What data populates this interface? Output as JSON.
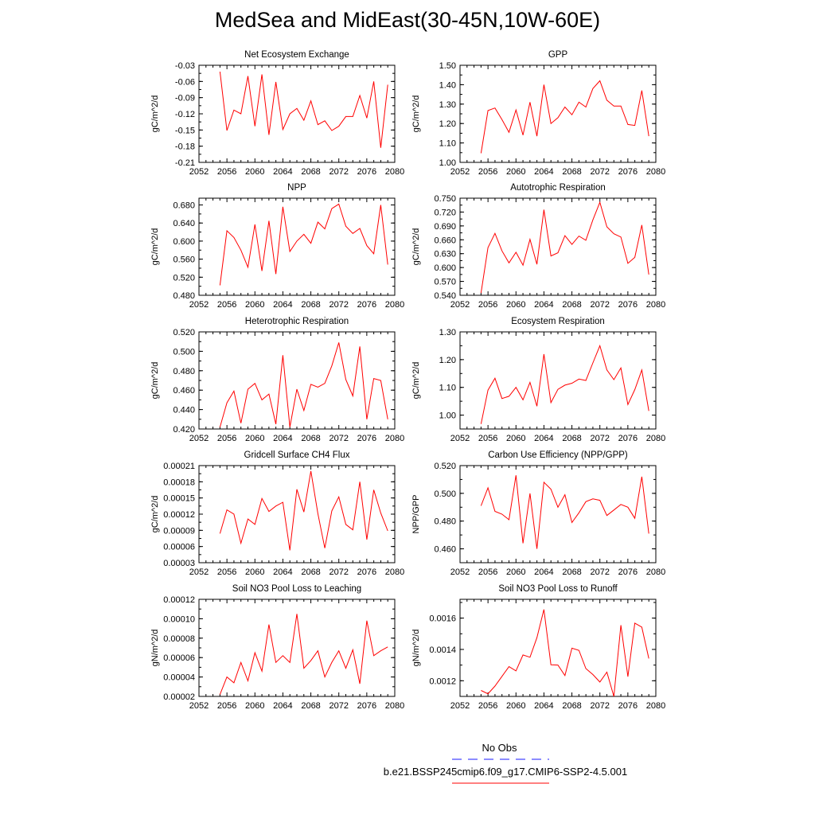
{
  "title": "MedSea and MidEast(30-45N,10W-60E)",
  "line_color": "#ff0000",
  "obs_color": "#1a1aff",
  "legend": {
    "no_obs": "No Obs",
    "run": "b.e21.BSSP245cmip6.f09_g17.CMIP6-SSP2-4.5.001"
  },
  "chart_data": [
    {
      "type": "line",
      "title": "Net Ecosystem Exchange",
      "ylabel": "gC/m^2/d",
      "xlim": [
        2052,
        2080
      ],
      "ylim": [
        -0.21,
        -0.03
      ],
      "xticks": [
        "2052",
        "2056",
        "2060",
        "2064",
        "2068",
        "2072",
        "2076",
        "2080"
      ],
      "yticks": [
        "-0.03",
        "-0.06",
        "-0.09",
        "-0.12",
        "-0.15",
        "-0.18",
        "-0.21"
      ],
      "x": [
        2055,
        2056,
        2057,
        2058,
        2059,
        2060,
        2061,
        2062,
        2063,
        2064,
        2065,
        2066,
        2067,
        2068,
        2069,
        2070,
        2071,
        2072,
        2073,
        2074,
        2075,
        2076,
        2077,
        2078,
        2079
      ],
      "y": [
        -0.042,
        -0.151,
        -0.113,
        -0.12,
        -0.05,
        -0.143,
        -0.047,
        -0.159,
        -0.061,
        -0.149,
        -0.12,
        -0.11,
        -0.132,
        -0.096,
        -0.14,
        -0.133,
        -0.151,
        -0.143,
        -0.125,
        -0.125,
        -0.086,
        -0.128,
        -0.06,
        -0.183,
        -0.066
      ]
    },
    {
      "type": "line",
      "title": "GPP",
      "ylabel": "gC/m^2/d",
      "xlim": [
        2052,
        2080
      ],
      "ylim": [
        1.0,
        1.5
      ],
      "xticks": [
        "2052",
        "2056",
        "2060",
        "2064",
        "2068",
        "2072",
        "2076",
        "2080"
      ],
      "yticks": [
        "1.50",
        "1.40",
        "1.30",
        "1.20",
        "1.10",
        "1.00"
      ],
      "x": [
        2055,
        2056,
        2057,
        2058,
        2059,
        2060,
        2061,
        2062,
        2063,
        2064,
        2065,
        2066,
        2067,
        2068,
        2069,
        2070,
        2071,
        2072,
        2073,
        2074,
        2075,
        2076,
        2077,
        2078,
        2079
      ],
      "y": [
        1.047,
        1.267,
        1.28,
        1.22,
        1.155,
        1.27,
        1.14,
        1.31,
        1.135,
        1.4,
        1.2,
        1.23,
        1.285,
        1.245,
        1.31,
        1.285,
        1.38,
        1.42,
        1.32,
        1.29,
        1.29,
        1.195,
        1.19,
        1.37,
        1.135
      ]
    },
    {
      "type": "line",
      "title": "NPP",
      "ylabel": "gC/m^2/d",
      "xlim": [
        2052,
        2080
      ],
      "ylim": [
        0.48,
        0.695
      ],
      "xticks": [
        "2052",
        "2056",
        "2060",
        "2064",
        "2068",
        "2072",
        "2076",
        "2080"
      ],
      "yticks": [
        "0.680",
        "0.640",
        "0.600",
        "0.560",
        "0.520",
        "0.480"
      ],
      "x": [
        2055,
        2056,
        2057,
        2058,
        2059,
        2060,
        2061,
        2062,
        2063,
        2064,
        2065,
        2066,
        2067,
        2068,
        2069,
        2070,
        2071,
        2072,
        2073,
        2074,
        2075,
        2076,
        2077,
        2078,
        2079
      ],
      "y": [
        0.502,
        0.623,
        0.608,
        0.58,
        0.542,
        0.637,
        0.534,
        0.645,
        0.527,
        0.676,
        0.577,
        0.6,
        0.615,
        0.595,
        0.642,
        0.627,
        0.672,
        0.682,
        0.633,
        0.617,
        0.628,
        0.59,
        0.572,
        0.68,
        0.548
      ]
    },
    {
      "type": "line",
      "title": "Autotrophic Respiration",
      "ylabel": "gC/m^2/d",
      "xlim": [
        2052,
        2080
      ],
      "ylim": [
        0.54,
        0.75
      ],
      "xticks": [
        "2052",
        "2056",
        "2060",
        "2064",
        "2068",
        "2072",
        "2076",
        "2080"
      ],
      "yticks": [
        "0.750",
        "0.720",
        "0.690",
        "0.660",
        "0.630",
        "0.600",
        "0.570",
        "0.540"
      ],
      "x": [
        2055,
        2056,
        2057,
        2058,
        2059,
        2060,
        2061,
        2062,
        2063,
        2064,
        2065,
        2066,
        2067,
        2068,
        2069,
        2070,
        2071,
        2072,
        2073,
        2074,
        2075,
        2076,
        2077,
        2078,
        2079
      ],
      "y": [
        0.545,
        0.643,
        0.674,
        0.636,
        0.61,
        0.633,
        0.605,
        0.661,
        0.607,
        0.725,
        0.625,
        0.632,
        0.669,
        0.65,
        0.668,
        0.659,
        0.703,
        0.741,
        0.688,
        0.673,
        0.666,
        0.609,
        0.622,
        0.692,
        0.585
      ]
    },
    {
      "type": "line",
      "title": "Heterotrophic Respiration",
      "ylabel": "gC/m^2/d",
      "xlim": [
        2052,
        2080
      ],
      "ylim": [
        0.42,
        0.52
      ],
      "xticks": [
        "2052",
        "2056",
        "2060",
        "2064",
        "2068",
        "2072",
        "2076",
        "2080"
      ],
      "yticks": [
        "0.520",
        "0.500",
        "0.480",
        "0.460",
        "0.440",
        "0.420"
      ],
      "x": [
        2055,
        2056,
        2057,
        2058,
        2059,
        2060,
        2061,
        2062,
        2063,
        2064,
        2065,
        2066,
        2067,
        2068,
        2069,
        2070,
        2071,
        2072,
        2073,
        2074,
        2075,
        2076,
        2077,
        2078,
        2079
      ],
      "y": [
        0.422,
        0.447,
        0.459,
        0.426,
        0.461,
        0.467,
        0.45,
        0.456,
        0.425,
        0.496,
        0.422,
        0.461,
        0.439,
        0.466,
        0.463,
        0.467,
        0.485,
        0.509,
        0.471,
        0.454,
        0.505,
        0.43,
        0.472,
        0.47,
        0.43
      ]
    },
    {
      "type": "line",
      "title": "Ecosystem Respiration",
      "ylabel": "gC/m^2/d",
      "xlim": [
        2052,
        2080
      ],
      "ylim": [
        0.95,
        1.3
      ],
      "xticks": [
        "2052",
        "2056",
        "2060",
        "2064",
        "2068",
        "2072",
        "2076",
        "2080"
      ],
      "yticks": [
        "1.30",
        "1.20",
        "1.10",
        "1.00"
      ],
      "x": [
        2055,
        2056,
        2057,
        2058,
        2059,
        2060,
        2061,
        2062,
        2063,
        2064,
        2065,
        2066,
        2067,
        2068,
        2069,
        2070,
        2071,
        2072,
        2073,
        2074,
        2075,
        2076,
        2077,
        2078,
        2079
      ],
      "y": [
        0.968,
        1.09,
        1.133,
        1.06,
        1.068,
        1.1,
        1.055,
        1.118,
        1.032,
        1.22,
        1.045,
        1.093,
        1.108,
        1.115,
        1.13,
        1.125,
        1.188,
        1.25,
        1.163,
        1.128,
        1.17,
        1.038,
        1.092,
        1.163,
        1.015
      ]
    },
    {
      "type": "line",
      "title": "Gridcell Surface CH4 Flux",
      "ylabel": "gC/m^2/d",
      "xlim": [
        2052,
        2080
      ],
      "ylim": [
        3e-05,
        0.00021
      ],
      "xticks": [
        "2052",
        "2056",
        "2060",
        "2064",
        "2068",
        "2072",
        "2076",
        "2080"
      ],
      "yticks": [
        "0.00021",
        "0.00018",
        "0.00015",
        "0.00012",
        "0.00009",
        "0.00006",
        "0.00003"
      ],
      "x": [
        2055,
        2056,
        2057,
        2058,
        2059,
        2060,
        2061,
        2062,
        2063,
        2064,
        2065,
        2066,
        2067,
        2068,
        2069,
        2070,
        2071,
        2072,
        2073,
        2074,
        2075,
        2076,
        2077,
        2078,
        2079
      ],
      "y": [
        8.4e-05,
        0.000128,
        0.00012,
        6.6e-05,
        0.000111,
        0.000101,
        0.000149,
        0.000125,
        0.000135,
        0.000142,
        5.3e-05,
        0.000166,
        0.000124,
        0.0002,
        0.000121,
        5.7e-05,
        0.000126,
        0.000152,
        0.000101,
        9.1e-05,
        0.00018,
        7.3e-05,
        0.000165,
        0.000122,
        8.9e-05
      ]
    },
    {
      "type": "line",
      "title": "Carbon Use Efficiency (NPP/GPP)",
      "ylabel": "NPP/GPP",
      "xlim": [
        2052,
        2080
      ],
      "ylim": [
        0.45,
        0.52
      ],
      "xticks": [
        "2052",
        "2056",
        "2060",
        "2064",
        "2068",
        "2072",
        "2076",
        "2080"
      ],
      "yticks": [
        "0.520",
        "0.500",
        "0.480",
        "0.460"
      ],
      "x": [
        2055,
        2056,
        2057,
        2058,
        2059,
        2060,
        2061,
        2062,
        2063,
        2064,
        2065,
        2066,
        2067,
        2068,
        2069,
        2070,
        2071,
        2072,
        2073,
        2074,
        2075,
        2076,
        2077,
        2078,
        2079
      ],
      "y": [
        0.491,
        0.504,
        0.487,
        0.485,
        0.481,
        0.513,
        0.464,
        0.5,
        0.46,
        0.508,
        0.503,
        0.49,
        0.499,
        0.479,
        0.486,
        0.494,
        0.496,
        0.495,
        0.484,
        0.488,
        0.492,
        0.49,
        0.482,
        0.512,
        0.471
      ]
    },
    {
      "type": "line",
      "title": "Soil NO3 Pool Loss to Leaching",
      "ylabel": "gN/m^2/d",
      "xlim": [
        2052,
        2080
      ],
      "ylim": [
        2e-05,
        0.00012
      ],
      "xticks": [
        "2052",
        "2056",
        "2060",
        "2064",
        "2068",
        "2072",
        "2076",
        "2080"
      ],
      "yticks": [
        "0.00012",
        "0.00010",
        "0.00008",
        "0.00006",
        "0.00004",
        "0.00002"
      ],
      "x": [
        2055,
        2056,
        2057,
        2058,
        2059,
        2060,
        2061,
        2062,
        2063,
        2064,
        2065,
        2066,
        2067,
        2068,
        2069,
        2070,
        2071,
        2072,
        2073,
        2074,
        2075,
        2076,
        2077,
        2078,
        2079
      ],
      "y": [
        2.2e-05,
        4e-05,
        3.4e-05,
        5.5e-05,
        3.6e-05,
        6.5e-05,
        4.6e-05,
        9.4e-05,
        5.5e-05,
        6.2e-05,
        5.5e-05,
        0.000105,
        4.9e-05,
        5.7e-05,
        6.7e-05,
        4e-05,
        5.5e-05,
        6.7e-05,
        4.9e-05,
        6.8e-05,
        3.3e-05,
        9.8e-05,
        6.2e-05,
        6.7e-05,
        7.1e-05
      ]
    },
    {
      "type": "line",
      "title": "Soil NO3 Pool Loss to Runoff",
      "ylabel": "gN/m^2/d",
      "xlim": [
        2052,
        2080
      ],
      "ylim": [
        0.0011,
        0.00172
      ],
      "xticks": [
        "2052",
        "2056",
        "2060",
        "2064",
        "2068",
        "2072",
        "2076",
        "2080"
      ],
      "yticks": [
        "0.0016",
        "0.0014",
        "0.0012"
      ],
      "x": [
        2055,
        2056,
        2057,
        2058,
        2059,
        2060,
        2061,
        2062,
        2063,
        2064,
        2065,
        2066,
        2067,
        2068,
        2069,
        2070,
        2071,
        2072,
        2073,
        2074,
        2075,
        2076,
        2077,
        2078,
        2079
      ],
      "y": [
        0.001138,
        0.001117,
        0.001166,
        0.001228,
        0.00129,
        0.001263,
        0.001365,
        0.00135,
        0.001475,
        0.001655,
        0.001302,
        0.0013,
        0.001233,
        0.001408,
        0.001394,
        0.001278,
        0.00124,
        0.001192,
        0.001255,
        0.0011,
        0.001555,
        0.001226,
        0.001568,
        0.001542,
        0.001342
      ]
    }
  ]
}
